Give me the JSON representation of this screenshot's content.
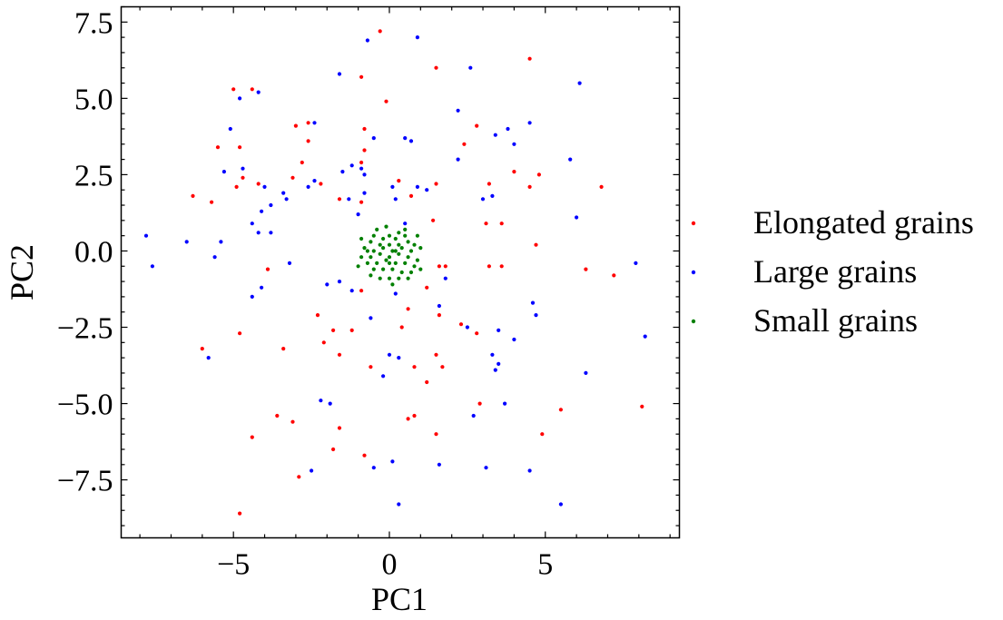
{
  "chart_data": {
    "type": "scatter",
    "title": "",
    "xlabel": "PC1",
    "ylabel": "PC2",
    "xlim": [
      -8.6,
      9.3
    ],
    "ylim": [
      -9.4,
      8.0
    ],
    "xticks": [
      -5,
      0,
      5
    ],
    "xtick_labels": [
      "−5",
      "0",
      "5"
    ],
    "yticks": [
      -7.5,
      -5.0,
      -2.5,
      0.0,
      2.5,
      5.0,
      7.5
    ],
    "ytick_labels": [
      "−7.5",
      "−5.0",
      "−2.5",
      "0.0",
      "2.5",
      "5.0",
      "7.5"
    ],
    "grid": false,
    "legend": "outside-right",
    "series": [
      {
        "name": "Elongated grains",
        "color": "#ff0000",
        "points": [
          [
            -0.3,
            7.2
          ],
          [
            4.5,
            6.3
          ],
          [
            1.5,
            6.0
          ],
          [
            -0.9,
            5.7
          ],
          [
            -5.0,
            5.3
          ],
          [
            -4.4,
            5.3
          ],
          [
            -0.1,
            4.9
          ],
          [
            -2.6,
            4.2
          ],
          [
            -3.0,
            4.1
          ],
          [
            -0.8,
            4.0
          ],
          [
            2.8,
            4.1
          ],
          [
            -5.5,
            3.4
          ],
          [
            -4.8,
            3.4
          ],
          [
            -2.6,
            3.6
          ],
          [
            2.4,
            3.5
          ],
          [
            -0.8,
            3.3
          ],
          [
            -0.9,
            2.9
          ],
          [
            -2.8,
            2.9
          ],
          [
            4.0,
            2.6
          ],
          [
            -4.7,
            2.4
          ],
          [
            4.8,
            2.5
          ],
          [
            -3.1,
            2.4
          ],
          [
            -4.9,
            2.1
          ],
          [
            -4.2,
            2.2
          ],
          [
            -5.7,
            1.6
          ],
          [
            -6.3,
            1.8
          ],
          [
            -2.2,
            2.2
          ],
          [
            0.3,
            2.3
          ],
          [
            1.5,
            2.2
          ],
          [
            3.2,
            2.2
          ],
          [
            -1.6,
            1.7
          ],
          [
            -0.9,
            1.6
          ],
          [
            0.7,
            1.8
          ],
          [
            4.5,
            2.1
          ],
          [
            6.8,
            2.1
          ],
          [
            1.4,
            1.0
          ],
          [
            3.1,
            0.9
          ],
          [
            3.6,
            0.9
          ],
          [
            4.7,
            0.2
          ],
          [
            -3.9,
            -0.6
          ],
          [
            1.6,
            -0.5
          ],
          [
            1.8,
            -0.5
          ],
          [
            3.2,
            -0.5
          ],
          [
            3.6,
            -0.5
          ],
          [
            6.3,
            -0.6
          ],
          [
            7.2,
            -0.8
          ],
          [
            -0.9,
            -1.3
          ],
          [
            1.2,
            -1.2
          ],
          [
            0.6,
            -1.9
          ],
          [
            -2.3,
            -2.1
          ],
          [
            1.6,
            -2.1
          ],
          [
            -1.8,
            -2.6
          ],
          [
            -1.2,
            -2.6
          ],
          [
            0.4,
            -2.5
          ],
          [
            2.3,
            -2.4
          ],
          [
            2.8,
            -2.7
          ],
          [
            -4.8,
            -2.7
          ],
          [
            -2.1,
            -3.0
          ],
          [
            -6.0,
            -3.2
          ],
          [
            -3.4,
            -3.2
          ],
          [
            -1.6,
            -3.4
          ],
          [
            1.5,
            -3.4
          ],
          [
            -0.6,
            -3.8
          ],
          [
            0.8,
            -3.8
          ],
          [
            1.7,
            -3.8
          ],
          [
            1.2,
            -4.3
          ],
          [
            2.9,
            -5.0
          ],
          [
            0.8,
            -5.4
          ],
          [
            0.6,
            -5.5
          ],
          [
            -3.6,
            -5.4
          ],
          [
            -3.1,
            -5.6
          ],
          [
            -1.6,
            -5.8
          ],
          [
            -4.4,
            -6.1
          ],
          [
            -1.8,
            -6.5
          ],
          [
            1.5,
            -6.0
          ],
          [
            4.9,
            -6.0
          ],
          [
            5.5,
            -5.2
          ],
          [
            8.1,
            -5.1
          ],
          [
            -0.8,
            -6.7
          ],
          [
            -2.9,
            -7.4
          ],
          [
            -4.8,
            -8.6
          ]
        ]
      },
      {
        "name": "Large grains",
        "color": "#0000ff",
        "points": [
          [
            -0.7,
            6.9
          ],
          [
            0.9,
            7.0
          ],
          [
            -1.6,
            5.8
          ],
          [
            2.6,
            6.0
          ],
          [
            6.1,
            5.5
          ],
          [
            -4.8,
            5.0
          ],
          [
            -4.2,
            5.2
          ],
          [
            2.2,
            4.6
          ],
          [
            4.5,
            4.2
          ],
          [
            -5.1,
            4.0
          ],
          [
            -2.4,
            4.2
          ],
          [
            3.8,
            4.0
          ],
          [
            0.5,
            3.7
          ],
          [
            -0.5,
            3.7
          ],
          [
            -5.3,
            2.6
          ],
          [
            0.7,
            3.6
          ],
          [
            3.4,
            3.8
          ],
          [
            4.0,
            3.5
          ],
          [
            -4.7,
            2.7
          ],
          [
            -1.2,
            2.8
          ],
          [
            -0.9,
            2.7
          ],
          [
            -1.5,
            2.6
          ],
          [
            -0.8,
            2.5
          ],
          [
            -2.4,
            2.3
          ],
          [
            -2.6,
            2.1
          ],
          [
            0.1,
            2.1
          ],
          [
            0.9,
            2.1
          ],
          [
            1.2,
            2.0
          ],
          [
            2.2,
            3.0
          ],
          [
            5.8,
            3.0
          ],
          [
            -4.0,
            2.1
          ],
          [
            -3.4,
            1.9
          ],
          [
            -3.3,
            1.7
          ],
          [
            -1.3,
            1.7
          ],
          [
            -0.8,
            1.9
          ],
          [
            0.2,
            1.7
          ],
          [
            3.0,
            1.7
          ],
          [
            3.3,
            1.8
          ],
          [
            -3.8,
            1.5
          ],
          [
            -4.1,
            1.3
          ],
          [
            -1.0,
            1.2
          ],
          [
            -4.4,
            0.9
          ],
          [
            -4.2,
            0.6
          ],
          [
            -3.8,
            0.6
          ],
          [
            0.5,
            0.9
          ],
          [
            -7.8,
            0.5
          ],
          [
            -6.5,
            0.3
          ],
          [
            -5.4,
            0.3
          ],
          [
            6.0,
            1.1
          ],
          [
            -7.6,
            -0.5
          ],
          [
            -5.6,
            -0.2
          ],
          [
            -3.2,
            -0.4
          ],
          [
            -1.6,
            -1.0
          ],
          [
            -2.0,
            -1.1
          ],
          [
            1.8,
            -0.9
          ],
          [
            -4.1,
            -1.2
          ],
          [
            7.9,
            -0.4
          ],
          [
            -4.4,
            -1.5
          ],
          [
            -1.2,
            -1.3
          ],
          [
            0.2,
            -1.4
          ],
          [
            1.6,
            -1.8
          ],
          [
            4.6,
            -1.7
          ],
          [
            4.7,
            -2.1
          ],
          [
            -0.6,
            -2.2
          ],
          [
            2.5,
            -2.5
          ],
          [
            3.5,
            -2.6
          ],
          [
            4.0,
            -2.9
          ],
          [
            -5.8,
            -3.5
          ],
          [
            0.0,
            -3.4
          ],
          [
            0.3,
            -3.5
          ],
          [
            3.3,
            -3.4
          ],
          [
            3.5,
            -3.7
          ],
          [
            3.4,
            -3.9
          ],
          [
            -0.2,
            -4.1
          ],
          [
            6.3,
            -4.0
          ],
          [
            8.2,
            -2.8
          ],
          [
            -2.2,
            -4.9
          ],
          [
            -1.9,
            -5.0
          ],
          [
            2.7,
            -5.4
          ],
          [
            3.7,
            -5.0
          ],
          [
            -0.5,
            -7.1
          ],
          [
            0.1,
            -6.9
          ],
          [
            1.6,
            -7.0
          ],
          [
            -2.5,
            -7.2
          ],
          [
            3.1,
            -7.1
          ],
          [
            4.5,
            -7.2
          ],
          [
            0.3,
            -8.3
          ],
          [
            5.5,
            -8.3
          ]
        ]
      },
      {
        "name": "Small grains",
        "color": "#008000",
        "points": [
          [
            -0.4,
            0.7
          ],
          [
            0.0,
            0.5
          ],
          [
            0.3,
            0.6
          ],
          [
            -0.2,
            0.4
          ],
          [
            0.2,
            0.4
          ],
          [
            0.5,
            0.5
          ],
          [
            -0.6,
            0.3
          ],
          [
            -0.3,
            0.2
          ],
          [
            0.0,
            0.2
          ],
          [
            0.3,
            0.2
          ],
          [
            0.6,
            0.3
          ],
          [
            0.8,
            0.2
          ],
          [
            -0.8,
            0.1
          ],
          [
            -0.5,
            0.0
          ],
          [
            -0.2,
            0.1
          ],
          [
            0.1,
            0.0
          ],
          [
            0.4,
            0.1
          ],
          [
            0.7,
            0.0
          ],
          [
            1.0,
            0.1
          ],
          [
            -0.9,
            -0.2
          ],
          [
            -0.6,
            -0.2
          ],
          [
            -0.3,
            -0.1
          ],
          [
            0.0,
            -0.2
          ],
          [
            0.3,
            -0.1
          ],
          [
            0.6,
            -0.2
          ],
          [
            0.9,
            -0.3
          ],
          [
            -0.7,
            -0.4
          ],
          [
            -0.4,
            -0.4
          ],
          [
            -0.1,
            -0.3
          ],
          [
            0.2,
            -0.4
          ],
          [
            0.5,
            -0.4
          ],
          [
            0.8,
            -0.5
          ],
          [
            -0.5,
            -0.6
          ],
          [
            -0.2,
            -0.6
          ],
          [
            0.1,
            -0.6
          ],
          [
            0.4,
            -0.7
          ],
          [
            0.7,
            -0.7
          ],
          [
            -0.3,
            -0.9
          ],
          [
            0.0,
            -0.9
          ],
          [
            0.3,
            -0.9
          ],
          [
            -0.9,
            0.4
          ],
          [
            0.9,
            0.5
          ],
          [
            -1.0,
            -0.5
          ],
          [
            1.0,
            -0.6
          ],
          [
            -0.1,
            0.8
          ],
          [
            0.1,
            -1.1
          ],
          [
            -0.5,
            0.5
          ],
          [
            0.5,
            0.7
          ],
          [
            -0.7,
            0.0
          ],
          [
            0.2,
            0.0
          ],
          [
            0.0,
            -0.4
          ],
          [
            0.6,
            -0.9
          ],
          [
            -0.6,
            -0.8
          ]
        ]
      }
    ]
  }
}
